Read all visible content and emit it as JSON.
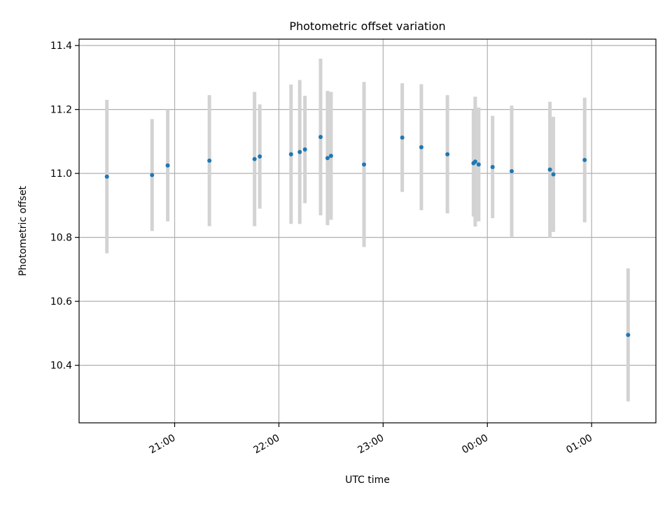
{
  "chart_data": {
    "type": "scatter",
    "title": "Photometric offset variation",
    "xlabel": "UTC time",
    "ylabel": "Photometric offset",
    "x_tick_labels": [
      "21:00",
      "22:00",
      "23:00",
      "00:00",
      "01:00"
    ],
    "x_tick_values": [
      "21:00",
      "22:00",
      "23:00",
      "00:00",
      "01:00"
    ],
    "y_ticks": [
      10.4,
      10.6,
      10.8,
      11.0,
      11.2,
      11.4
    ],
    "xlim": [
      "20:05",
      "01:37"
    ],
    "ylim": [
      10.22,
      11.42
    ],
    "grid": true,
    "colors": {
      "point": "#1f77b4",
      "errorbar": "#d3d3d3",
      "grid": "#b0b0b0"
    },
    "points": [
      {
        "x": "20:21",
        "y": 10.99,
        "err": 0.24
      },
      {
        "x": "20:47",
        "y": 10.995,
        "err": 0.175
      },
      {
        "x": "20:56",
        "y": 11.025,
        "err": 0.175
      },
      {
        "x": "21:20",
        "y": 11.04,
        "err": 0.205
      },
      {
        "x": "21:46",
        "y": 11.045,
        "err": 0.21
      },
      {
        "x": "21:49",
        "y": 11.053,
        "err": 0.163
      },
      {
        "x": "22:07",
        "y": 11.06,
        "err": 0.218
      },
      {
        "x": "22:12",
        "y": 11.067,
        "err": 0.225
      },
      {
        "x": "22:15",
        "y": 11.075,
        "err": 0.168
      },
      {
        "x": "22:24",
        "y": 11.114,
        "err": 0.245
      },
      {
        "x": "22:28",
        "y": 11.048,
        "err": 0.21
      },
      {
        "x": "22:30",
        "y": 11.055,
        "err": 0.2
      },
      {
        "x": "22:49",
        "y": 11.028,
        "err": 0.258
      },
      {
        "x": "23:11",
        "y": 11.112,
        "err": 0.17
      },
      {
        "x": "23:22",
        "y": 11.082,
        "err": 0.197
      },
      {
        "x": "23:37",
        "y": 11.06,
        "err": 0.185
      },
      {
        "x": "23:52",
        "y": 11.032,
        "err": 0.167
      },
      {
        "x": "23:53",
        "y": 11.037,
        "err": 0.203
      },
      {
        "x": "23:55",
        "y": 11.028,
        "err": 0.178
      },
      {
        "x": "00:03",
        "y": 11.02,
        "err": 0.16
      },
      {
        "x": "00:14",
        "y": 11.007,
        "err": 0.205
      },
      {
        "x": "00:36",
        "y": 11.012,
        "err": 0.212
      },
      {
        "x": "00:38",
        "y": 10.997,
        "err": 0.18
      },
      {
        "x": "00:56",
        "y": 11.042,
        "err": 0.195
      },
      {
        "x": "01:21",
        "y": 10.495,
        "err": 0.208
      }
    ]
  }
}
